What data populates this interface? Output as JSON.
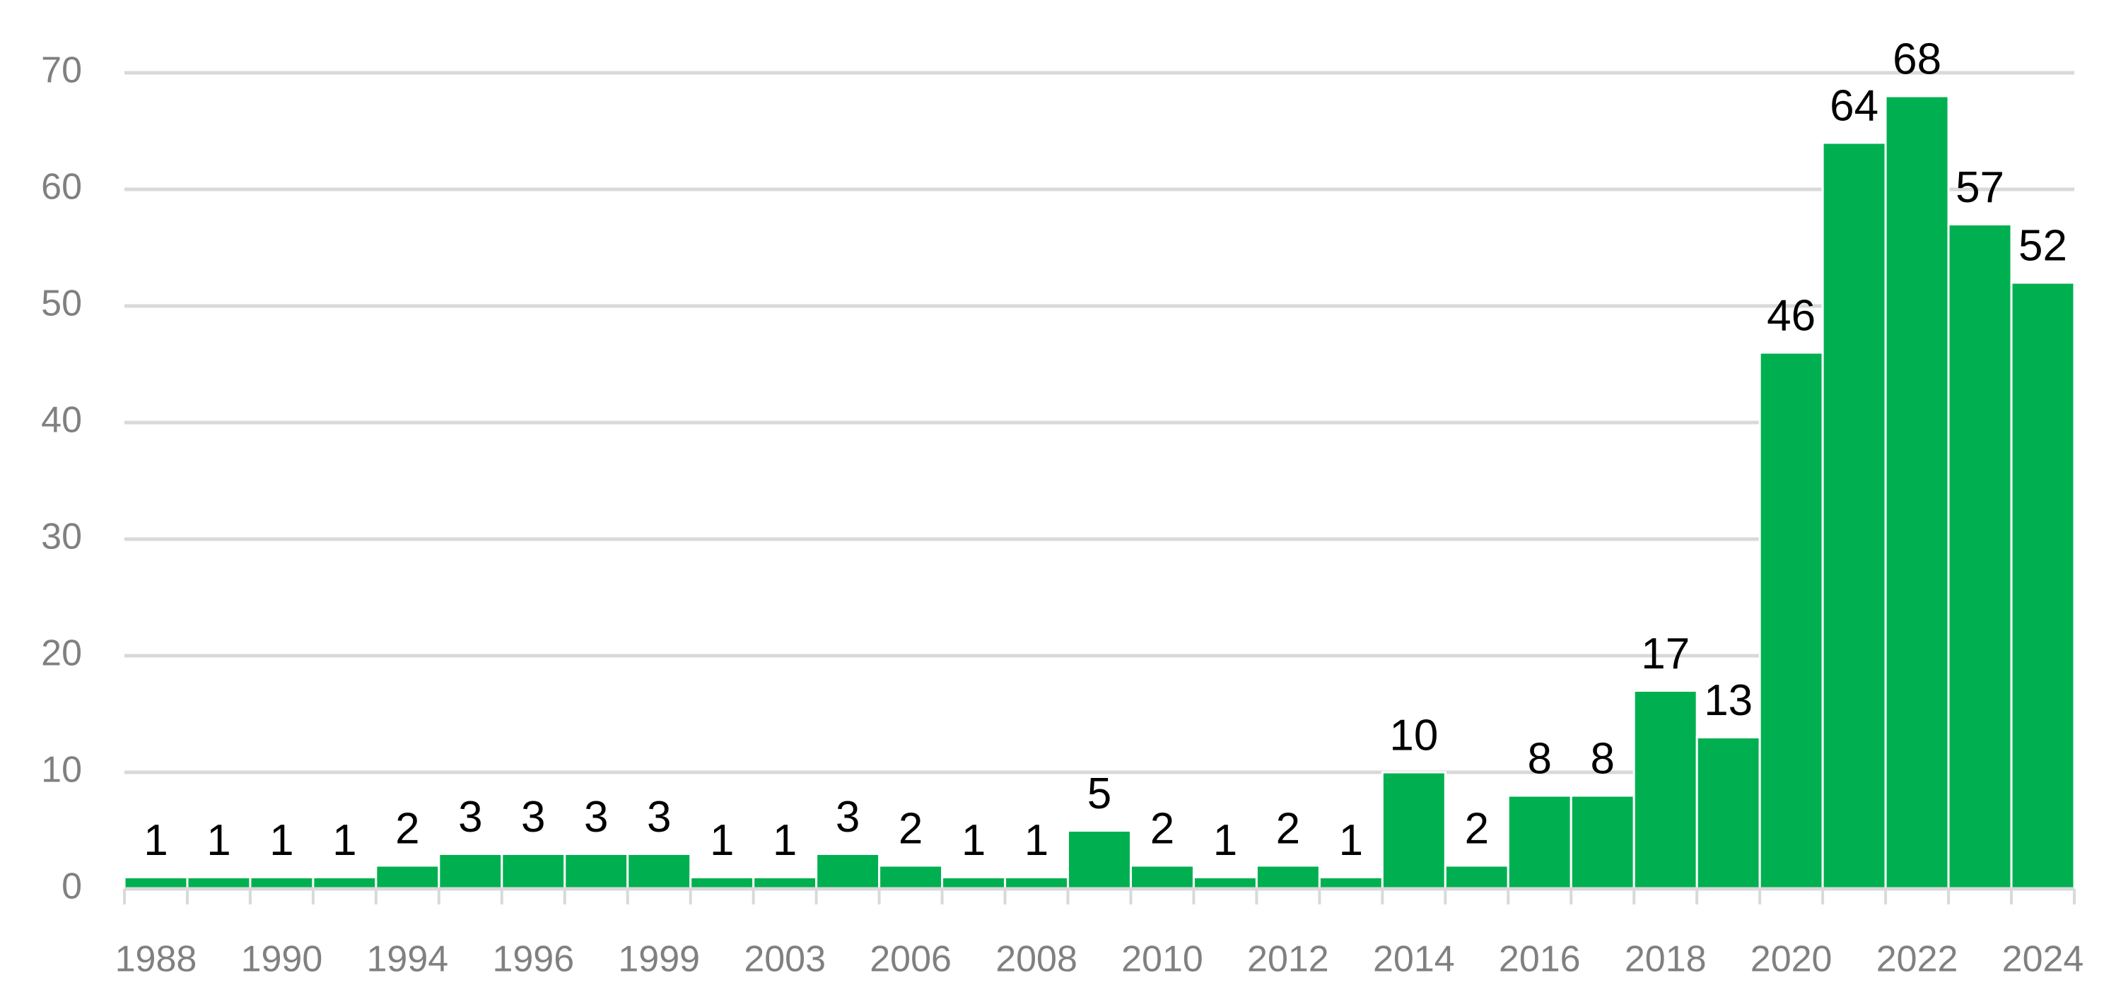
{
  "chart_data": {
    "type": "bar",
    "categories": [
      "1988",
      null,
      "1990",
      null,
      "1994",
      null,
      "1996",
      null,
      "1999",
      null,
      "2003",
      null,
      "2006",
      null,
      "2008",
      null,
      "2010",
      null,
      "2012",
      null,
      "2014",
      null,
      "2016",
      null,
      "2018",
      null,
      "2020",
      null,
      "2022",
      null,
      "2024"
    ],
    "values": [
      1,
      1,
      1,
      1,
      2,
      3,
      3,
      3,
      3,
      1,
      1,
      3,
      2,
      1,
      1,
      5,
      2,
      1,
      2,
      1,
      10,
      2,
      8,
      8,
      17,
      13,
      46,
      64,
      68,
      57,
      52
    ],
    "color": "#00b050",
    "ylim": [
      0,
      70
    ],
    "yticks": [
      0,
      10,
      20,
      30,
      40,
      50,
      60,
      70
    ],
    "grid": true
  }
}
